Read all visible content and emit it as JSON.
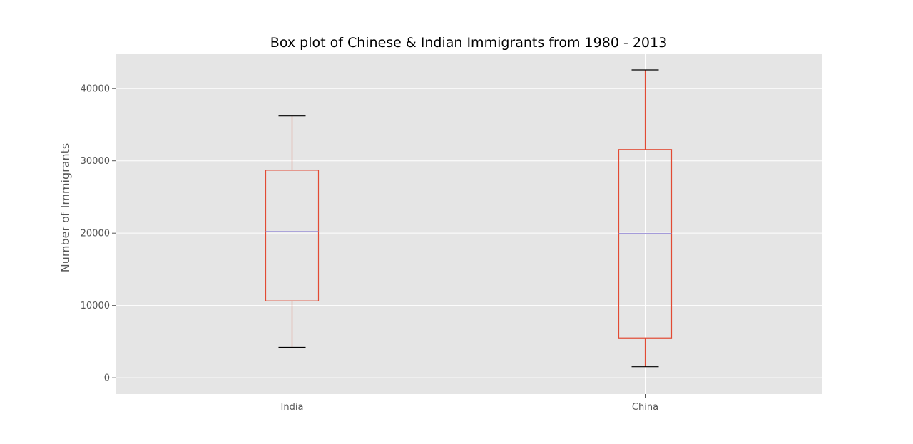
{
  "chart_data": {
    "type": "box",
    "title": "Box plot of Chinese & Indian Immigrants from 1980 - 2013",
    "xlabel": "",
    "ylabel": "Number of Immigrants",
    "categories": [
      "India",
      "China"
    ],
    "boxes": [
      {
        "category": "India",
        "whisker_low": 4211,
        "q1": 10637,
        "median": 20235,
        "q3": 28700,
        "whisker_high": 36210
      },
      {
        "category": "China",
        "whisker_low": 1527,
        "q1": 5512,
        "median": 19945,
        "q3": 31568,
        "whisker_high": 42584
      }
    ],
    "yticks": [
      0,
      10000,
      20000,
      30000,
      40000
    ],
    "ylim": [
      -2250,
      44750
    ],
    "grid": true,
    "colors": {
      "background": "#E5E5E5",
      "grid": "#FFFFFF",
      "box": "#E24A33",
      "median": "#988ED5",
      "whisker_cap": "#000000"
    }
  }
}
